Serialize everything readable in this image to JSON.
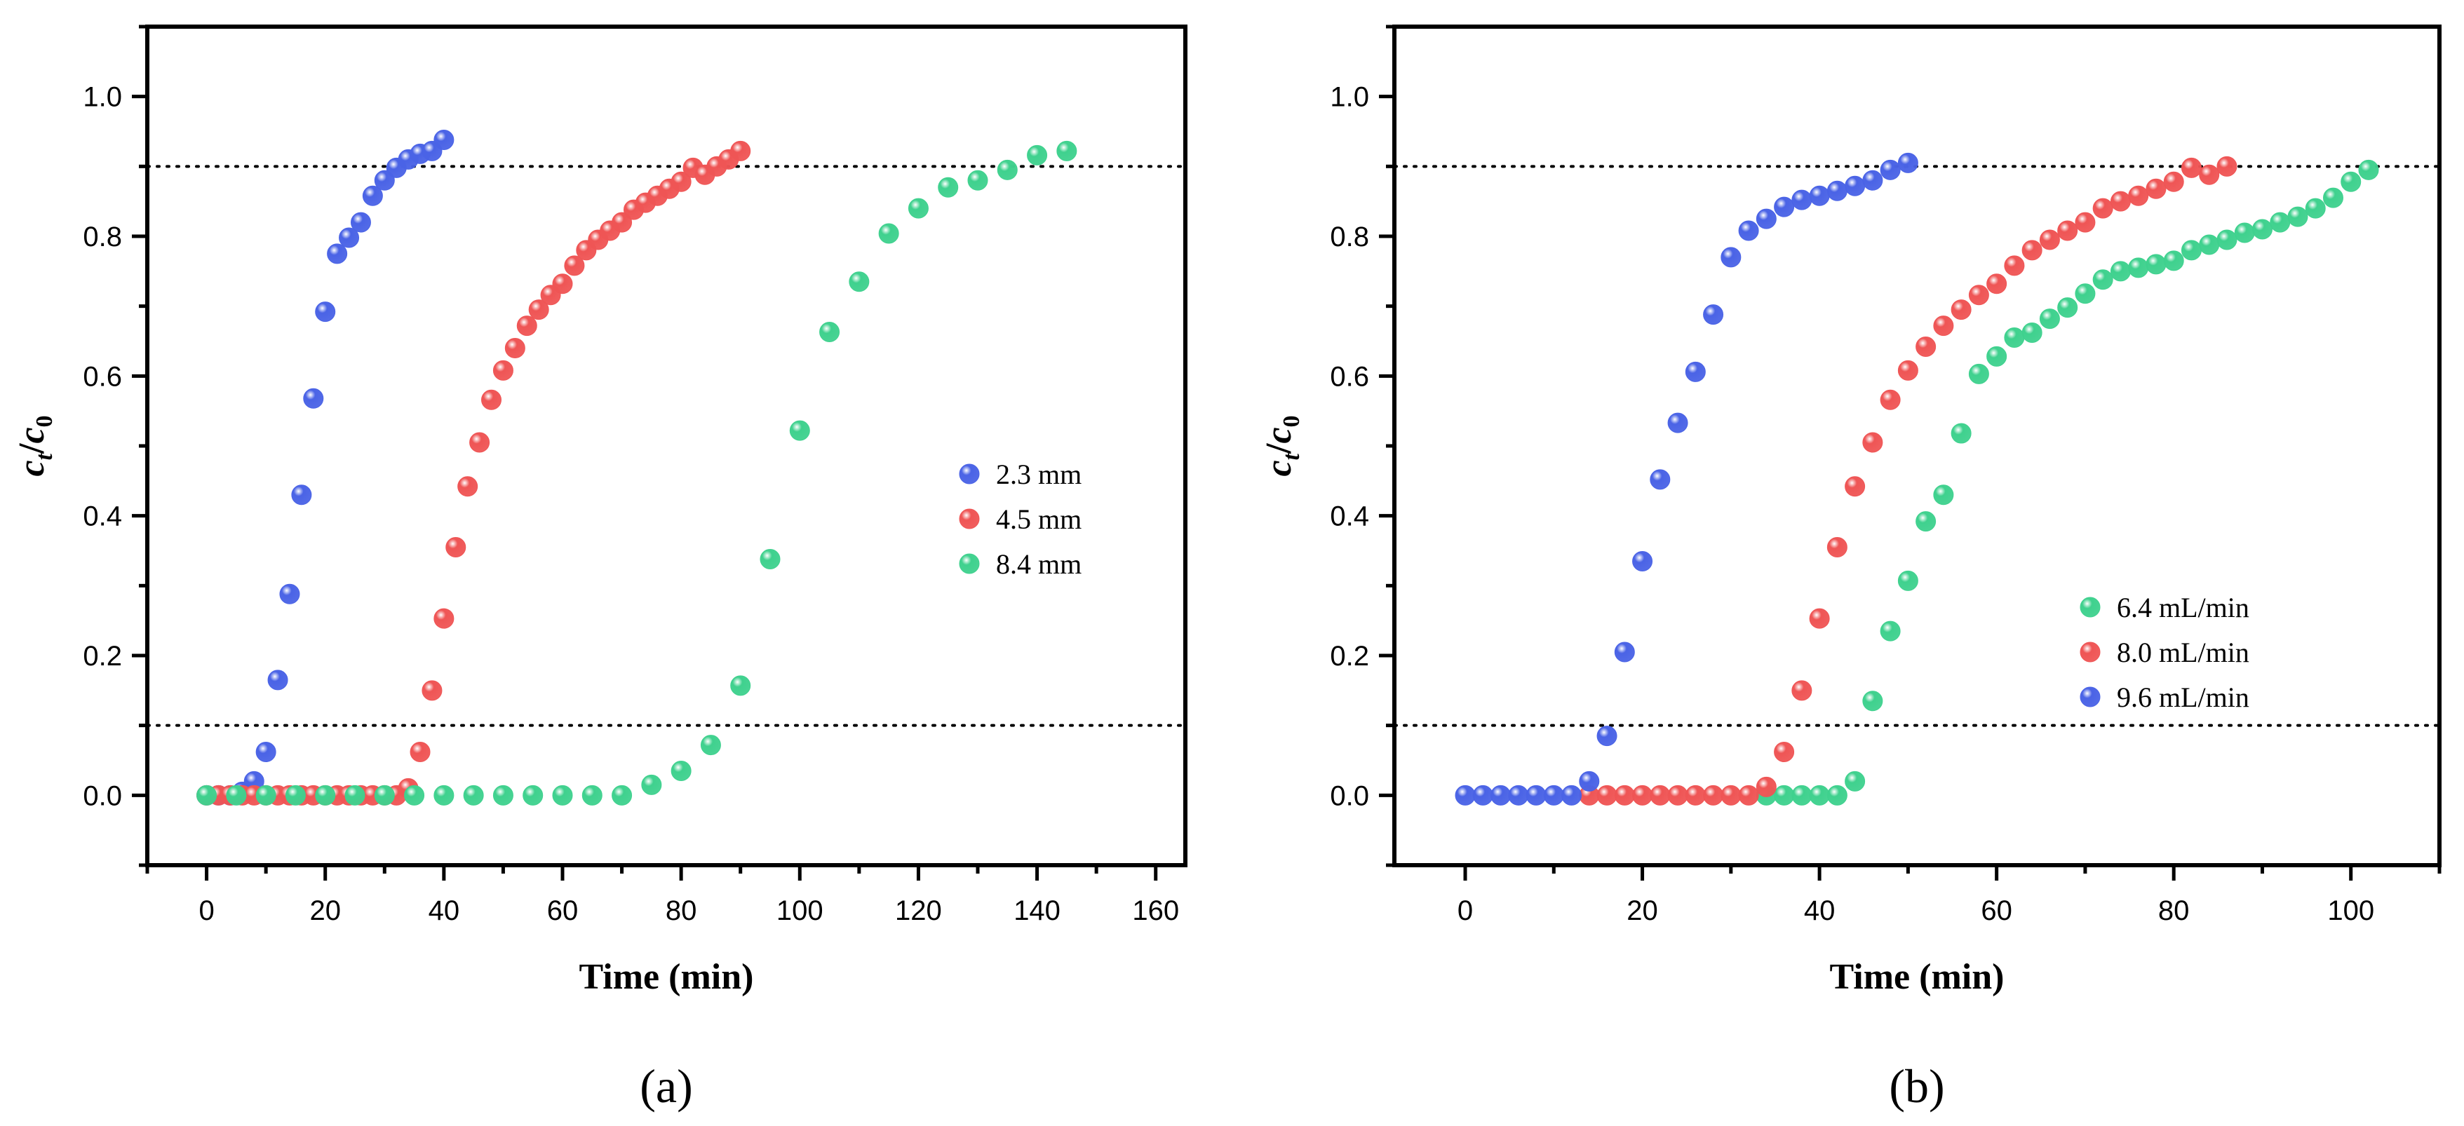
{
  "chart_data": [
    {
      "type": "scatter",
      "panel_label": "(a)",
      "xlabel": "Time (min)",
      "ylabel_main": "c",
      "ylabel_sub1": "t",
      "ylabel_slash": "/",
      "ylabel_sub2": "0",
      "xlim": [
        -10,
        165
      ],
      "ylim": [
        -0.1,
        1.1
      ],
      "xticks": [
        0,
        20,
        40,
        60,
        80,
        100,
        120,
        140,
        160
      ],
      "yticks": [
        0.0,
        0.2,
        0.4,
        0.6,
        0.8,
        1.0
      ],
      "xtick_labels": [
        "0",
        "20",
        "40",
        "60",
        "80",
        "100",
        "120",
        "140",
        "160"
      ],
      "ytick_labels": [
        "0.0",
        "0.2",
        "0.4",
        "0.6",
        "0.8",
        "1.0"
      ],
      "reference_lines": [
        0.1,
        0.9
      ],
      "legend_position": "right-middle",
      "series": [
        {
          "name": "2.3 mm",
          "color": "#4a63e6",
          "x": [
            0,
            2,
            4,
            6,
            8,
            10,
            12,
            14,
            16,
            18,
            20,
            22,
            24,
            26,
            28,
            30,
            32,
            34,
            36,
            38,
            40
          ],
          "y": [
            0.0,
            0.0,
            0.0,
            0.005,
            0.02,
            0.062,
            0.165,
            0.288,
            0.43,
            0.568,
            0.692,
            0.775,
            0.798,
            0.82,
            0.858,
            0.88,
            0.898,
            0.91,
            0.918,
            0.922,
            0.938
          ]
        },
        {
          "name": "4.5 mm",
          "color": "#ef5555",
          "x": [
            0,
            2,
            4,
            6,
            8,
            10,
            12,
            14,
            16,
            18,
            20,
            22,
            24,
            26,
            28,
            30,
            32,
            34,
            36,
            38,
            40,
            42,
            44,
            46,
            48,
            50,
            52,
            54,
            56,
            58,
            60,
            62,
            64,
            66,
            68,
            70,
            72,
            74,
            76,
            78,
            80,
            82,
            84,
            86,
            88,
            90
          ],
          "y": [
            0,
            0,
            0,
            0,
            0,
            0,
            0,
            0,
            0,
            0,
            0,
            0,
            0,
            0,
            0,
            0,
            0,
            0.01,
            0.062,
            0.15,
            0.253,
            0.355,
            0.442,
            0.505,
            0.566,
            0.608,
            0.64,
            0.672,
            0.695,
            0.716,
            0.732,
            0.758,
            0.78,
            0.795,
            0.808,
            0.82,
            0.838,
            0.848,
            0.858,
            0.868,
            0.878,
            0.898,
            0.888,
            0.9,
            0.91,
            0.922
          ]
        },
        {
          "name": "8.4 mm",
          "color": "#3fd18e",
          "x": [
            0,
            5,
            10,
            15,
            20,
            25,
            30,
            35,
            40,
            45,
            50,
            55,
            60,
            65,
            70,
            75,
            80,
            85,
            90,
            95,
            100,
            105,
            110,
            115,
            120,
            125,
            130,
            135,
            140,
            145
          ],
          "y": [
            0,
            0,
            0,
            0,
            0,
            0,
            0,
            0,
            0,
            0,
            0,
            0,
            0,
            0,
            0,
            0.015,
            0.035,
            0.072,
            0.157,
            0.338,
            0.522,
            0.663,
            0.735,
            0.804,
            0.84,
            0.87,
            0.88,
            0.895,
            0.916,
            0.922
          ]
        }
      ]
    },
    {
      "type": "scatter",
      "panel_label": "(b)",
      "xlabel": "Time (min)",
      "ylabel_main": "c",
      "ylabel_sub1": "t",
      "ylabel_slash": "/",
      "ylabel_sub2": "0",
      "xlim": [
        -8,
        110
      ],
      "ylim": [
        -0.1,
        1.1
      ],
      "xticks": [
        0,
        20,
        40,
        60,
        80,
        100
      ],
      "yticks": [
        0.0,
        0.2,
        0.4,
        0.6,
        0.8,
        1.0
      ],
      "xtick_labels": [
        "0",
        "20",
        "40",
        "60",
        "80",
        "100"
      ],
      "ytick_labels": [
        "0.0",
        "0.2",
        "0.4",
        "0.6",
        "0.8",
        "1.0"
      ],
      "reference_lines": [
        0.1,
        0.9
      ],
      "legend_position": "bottom-right",
      "series": [
        {
          "name": "6.4 mL/min",
          "color": "#3fd18e",
          "x": [
            34,
            36,
            38,
            40,
            42,
            44,
            46,
            48,
            50,
            52,
            54,
            56,
            58,
            60,
            62,
            64,
            66,
            68,
            70,
            72,
            74,
            76,
            78,
            80,
            82,
            84,
            86,
            88,
            90,
            92,
            94,
            96,
            98,
            100,
            102
          ],
          "y": [
            0,
            0,
            0,
            0,
            0,
            0.02,
            0.135,
            0.235,
            0.307,
            0.392,
            0.43,
            0.518,
            0.603,
            0.628,
            0.655,
            0.662,
            0.682,
            0.698,
            0.718,
            0.738,
            0.75,
            0.755,
            0.76,
            0.765,
            0.78,
            0.788,
            0.795,
            0.805,
            0.81,
            0.82,
            0.828,
            0.84,
            0.855,
            0.878,
            0.895
          ]
        },
        {
          "name": "8.0 mL/min",
          "color": "#ef5555",
          "x": [
            14,
            16,
            18,
            20,
            22,
            24,
            26,
            28,
            30,
            32,
            34,
            36,
            38,
            40,
            42,
            44,
            46,
            48,
            50,
            52,
            54,
            56,
            58,
            60,
            62,
            64,
            66,
            68,
            70,
            72,
            74,
            76,
            78,
            80,
            82,
            84,
            86
          ],
          "y": [
            0,
            0,
            0,
            0,
            0,
            0,
            0,
            0,
            0,
            0,
            0.012,
            0.062,
            0.15,
            0.253,
            0.355,
            0.442,
            0.505,
            0.566,
            0.608,
            0.642,
            0.672,
            0.695,
            0.716,
            0.732,
            0.758,
            0.78,
            0.795,
            0.808,
            0.82,
            0.84,
            0.85,
            0.858,
            0.868,
            0.878,
            0.898,
            0.888,
            0.9
          ]
        },
        {
          "name": "9.6 mL/min",
          "color": "#4a63e6",
          "x": [
            0,
            2,
            4,
            6,
            8,
            10,
            12,
            14,
            16,
            18,
            20,
            22,
            24,
            26,
            28,
            30,
            32,
            34,
            36,
            38,
            40,
            42,
            44,
            46,
            48,
            50
          ],
          "y": [
            0,
            0,
            0,
            0,
            0,
            0,
            0,
            0.02,
            0.085,
            0.205,
            0.335,
            0.452,
            0.533,
            0.606,
            0.688,
            0.77,
            0.808,
            0.825,
            0.842,
            0.852,
            0.858,
            0.865,
            0.872,
            0.88,
            0.895,
            0.905
          ]
        }
      ]
    }
  ]
}
